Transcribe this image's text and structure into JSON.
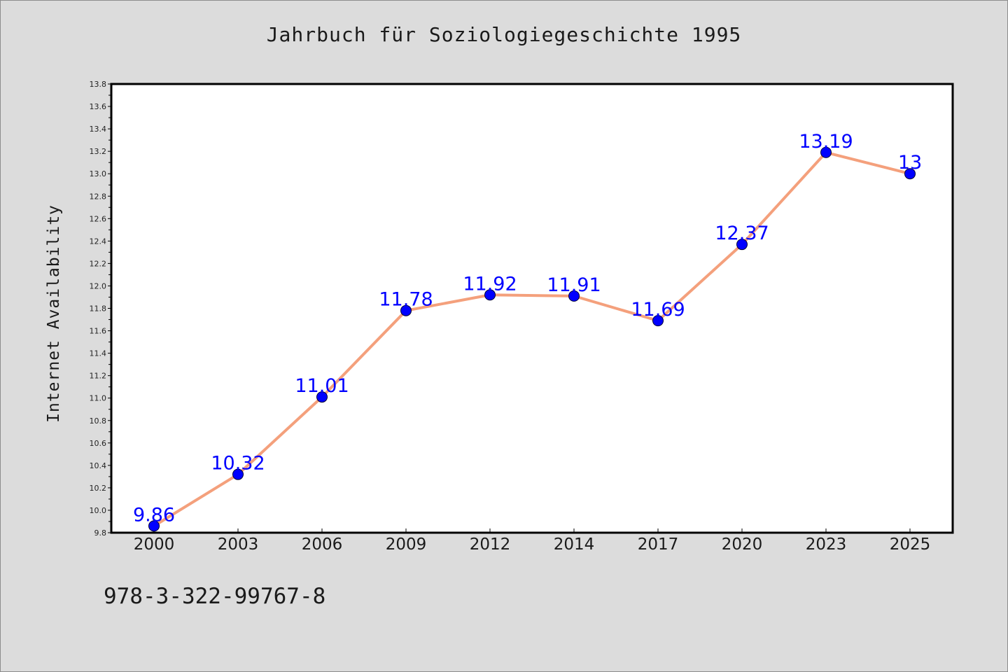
{
  "page": {
    "title": "Jahrbuch für Soziologiegeschichte 1995",
    "isbn": "978-3-322-99767-8"
  },
  "chart_data": {
    "type": "line",
    "title": "Jahrbuch für Soziologiegeschichte 1995",
    "xlabel": "",
    "ylabel": "Internet Availability",
    "categories": [
      "2000",
      "2003",
      "2006",
      "2009",
      "2012",
      "2014",
      "2017",
      "2020",
      "2023",
      "2025"
    ],
    "series": [
      {
        "values": [
          9.86,
          10.32,
          11.01,
          11.78,
          11.92,
          11.91,
          11.69,
          12.37,
          13.19,
          13
        ]
      }
    ],
    "data_labels": [
      "9.86",
      "10.32",
      "11.01",
      "11.78",
      "11.92",
      "11.91",
      "11.69",
      "12.37",
      "13.19",
      "13"
    ],
    "ylim": [
      9.8,
      13.8
    ],
    "yticks": [
      "9.8",
      "10.0",
      "10.2",
      "10.4",
      "10.6",
      "10.8",
      "11.0",
      "11.2",
      "11.4",
      "11.6",
      "11.8",
      "12.0",
      "12.2",
      "12.4",
      "12.6",
      "12.8",
      "13.0",
      "13.2",
      "13.4",
      "13.6",
      "13.8"
    ],
    "grid": false,
    "legend": "none",
    "colors": {
      "line": "#f4a07c",
      "marker": "#0000ff",
      "data_label": "#0000ff",
      "plot_background": "#ffffff",
      "figure_background": "#dcdcdc"
    }
  }
}
